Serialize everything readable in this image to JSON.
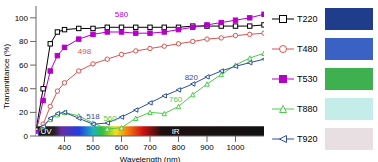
{
  "chart_data": {
    "type": "line",
    "x_label": "Wavelength (nm)",
    "y_label": "Transmittance (%)",
    "x": [
      300,
      325,
      350,
      375,
      400,
      450,
      500,
      550,
      600,
      650,
      700,
      750,
      800,
      850,
      900,
      950,
      1000,
      1050,
      1100
    ],
    "xlim": [
      300,
      1100
    ],
    "xticks": [
      400,
      500,
      600,
      700,
      800,
      900,
      1000
    ],
    "ylim": [
      0,
      110
    ],
    "yticks": [
      0,
      20,
      40,
      60,
      80,
      100
    ],
    "grid": false,
    "legend": "right",
    "series": [
      {
        "name": "T220",
        "color": "#000000",
        "marker": "square",
        "values": [
          5,
          40,
          78,
          88,
          90,
          91,
          91,
          92,
          92,
          92,
          92,
          92,
          92,
          93,
          93,
          93,
          93,
          93,
          94
        ]
      },
      {
        "name": "T480",
        "color": "#d9534f",
        "marker": "circle",
        "values": [
          2,
          10,
          25,
          38,
          45,
          55,
          61,
          65,
          69,
          72,
          74,
          76,
          78,
          80,
          82,
          83,
          85,
          86,
          87
        ]
      },
      {
        "name": "T530",
        "color": "#b400c8",
        "marker": "filled_square",
        "values": [
          3,
          30,
          55,
          68,
          75,
          82,
          86,
          88,
          88,
          87,
          87,
          88,
          90,
          92,
          94,
          96,
          98,
          100,
          103
        ]
      },
      {
        "name": "T880",
        "color": "#4ccc4c",
        "marker": "triangle",
        "values": [
          1,
          8,
          14,
          18,
          20,
          17,
          11,
          6,
          7,
          15,
          20,
          19,
          25,
          35,
          44,
          52,
          60,
          66,
          70
        ]
      },
      {
        "name": "T920",
        "color": "#2f4f9f",
        "marker": "triangle_left",
        "values": [
          1,
          8,
          15,
          19,
          20,
          15,
          10,
          11,
          16,
          22,
          28,
          34,
          39,
          44,
          50,
          55,
          59,
          62,
          65
        ]
      }
    ],
    "annotations": [
      {
        "text": "580",
        "x": 600,
        "y": 103,
        "color": "#b400c8"
      },
      {
        "text": "498",
        "x": 470,
        "y": 72,
        "color": "#d9534f"
      },
      {
        "text": "518",
        "x": 500,
        "y": 17,
        "color": "#2f4f9f"
      },
      {
        "text": "820",
        "x": 845,
        "y": 50,
        "color": "#2f4f9f"
      },
      {
        "text": "560",
        "x": 560,
        "y": 15,
        "color": "#4ccc4c"
      },
      {
        "text": "760",
        "x": 790,
        "y": 31,
        "color": "#4ccc4c"
      }
    ],
    "band_labels": [
      {
        "text": "UV",
        "x": 335
      },
      {
        "text": "IR",
        "x": 790
      }
    ]
  }
}
